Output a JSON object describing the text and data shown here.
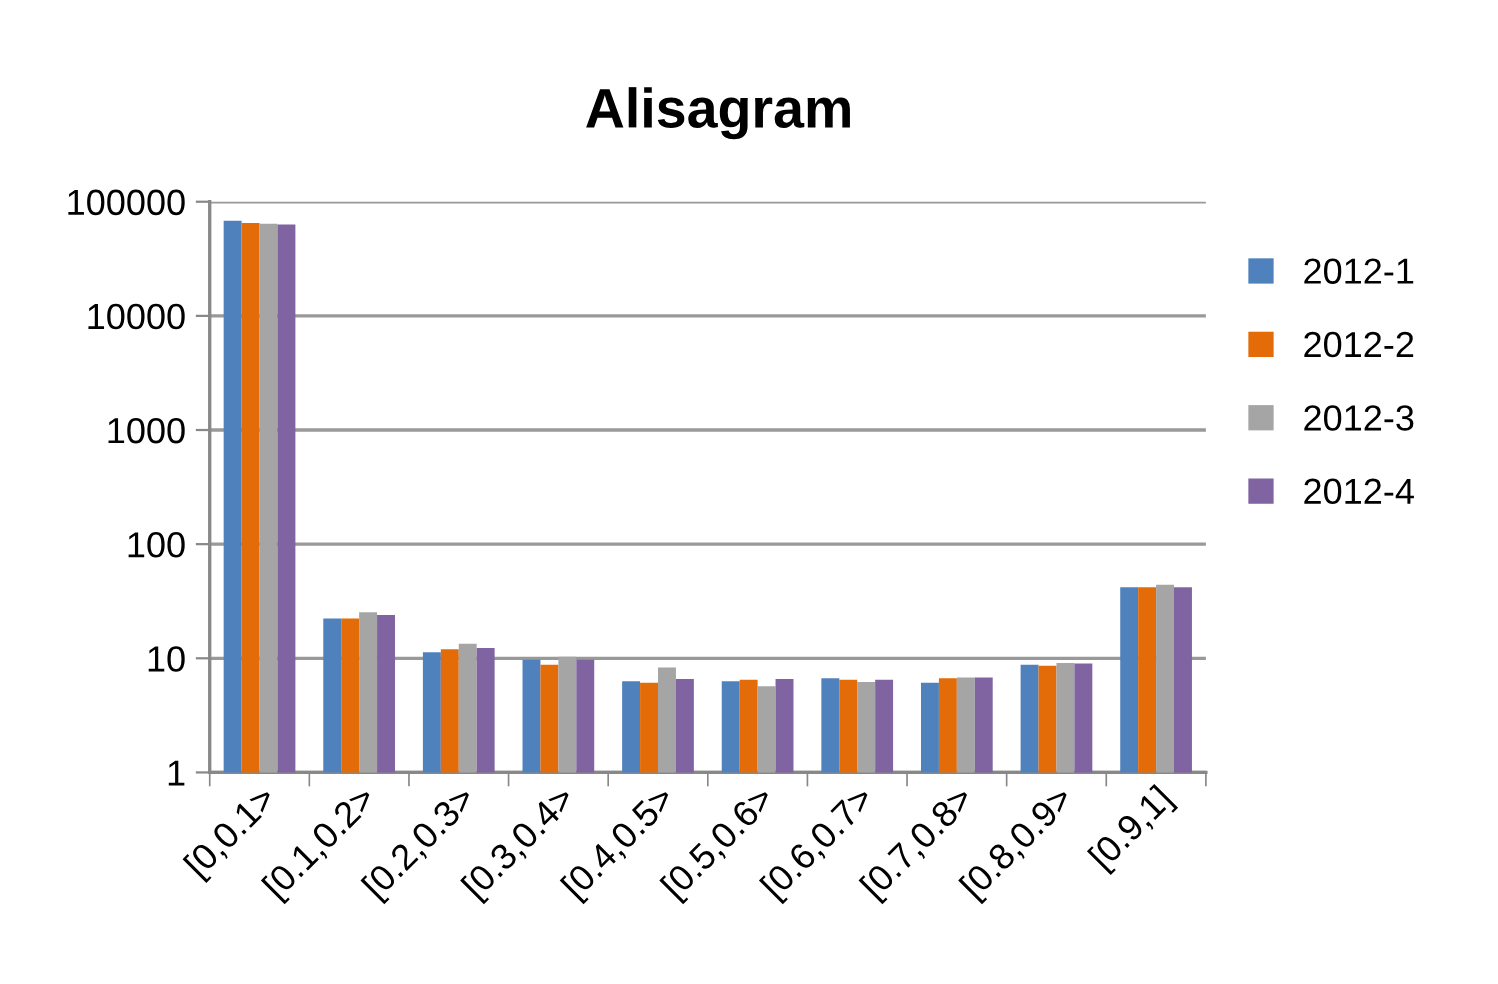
{
  "chart_data": {
    "type": "bar",
    "title": "Alisagram",
    "categories": [
      "[0,0.1>",
      "[0.1,0.2>",
      "[0.2,0.3>",
      "[0.3,0.4>",
      "[0.4,0.5>",
      "[0.5,0.6>",
      "[0.6,0.7>",
      "[0.7,0.8>",
      "[0.8,0.9>",
      "[0.9,1]"
    ],
    "series": [
      {
        "name": "2012-1",
        "color": "#4f81bd",
        "values": [
          68000,
          22.3,
          11.3,
          9.7,
          6.3,
          6.3,
          6.7,
          6.1,
          8.8,
          42
        ]
      },
      {
        "name": "2012-2",
        "color": "#e36c09",
        "values": [
          65000,
          22.3,
          12.0,
          8.8,
          6.1,
          6.5,
          6.5,
          6.7,
          8.6,
          42
        ]
      },
      {
        "name": "2012-3",
        "color": "#a5a5a5",
        "values": [
          64000,
          25.3,
          13.4,
          10.3,
          8.3,
          5.7,
          6.2,
          6.8,
          9.1,
          44
        ]
      },
      {
        "name": "2012-4",
        "color": "#8064a2",
        "values": [
          63000,
          23.9,
          12.3,
          9.7,
          6.6,
          6.6,
          6.5,
          6.8,
          9.0,
          42
        ]
      }
    ],
    "log": "y",
    "ylim": [
      1,
      100000
    ],
    "yticks": [
      1,
      10,
      100,
      1000,
      10000,
      100000
    ],
    "grid": "y",
    "legend": "right"
  }
}
